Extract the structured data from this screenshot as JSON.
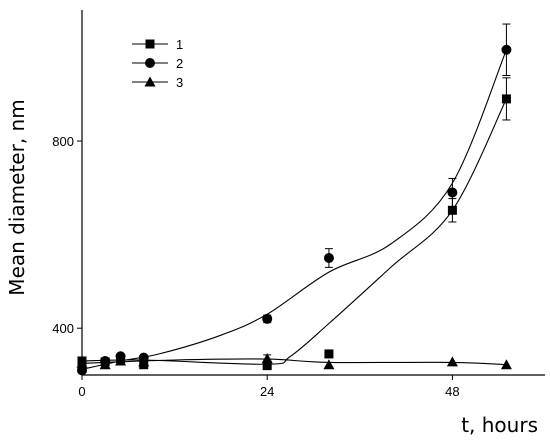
{
  "chart_data": {
    "type": "scatter",
    "xlabel": "t, hours",
    "ylabel": "Mean diameter, nm",
    "xlim": [
      0,
      60
    ],
    "ylim": [
      300,
      1080
    ],
    "x_ticks": [
      0,
      24,
      48
    ],
    "y_ticks": [
      400,
      800
    ],
    "x_tick_labels": [
      "0",
      "24",
      "48"
    ],
    "y_tick_labels": [
      "400",
      "800"
    ],
    "legend_position": "top-left",
    "series": [
      {
        "name": "1",
        "marker": "square",
        "points": [
          {
            "x": 0,
            "y": 330
          },
          {
            "x": 3,
            "y": 328
          },
          {
            "x": 5,
            "y": 335
          },
          {
            "x": 8,
            "y": 322
          },
          {
            "x": 24,
            "y": 320
          },
          {
            "x": 32,
            "y": 345
          },
          {
            "x": 48,
            "y": 652,
            "err": 25
          },
          {
            "x": 55,
            "y": 890,
            "err": 45
          }
        ],
        "curve": [
          {
            "x": 0,
            "y": 330
          },
          {
            "x": 8,
            "y": 332
          },
          {
            "x": 24,
            "y": 323
          },
          {
            "x": 27,
            "y": 340
          },
          {
            "x": 32,
            "y": 410
          },
          {
            "x": 40,
            "y": 530
          },
          {
            "x": 48,
            "y": 652
          },
          {
            "x": 55,
            "y": 890
          }
        ]
      },
      {
        "name": "2",
        "marker": "circle",
        "points": [
          {
            "x": 0,
            "y": 310
          },
          {
            "x": 3,
            "y": 330
          },
          {
            "x": 5,
            "y": 340
          },
          {
            "x": 8,
            "y": 337
          },
          {
            "x": 24,
            "y": 420,
            "err": 8
          },
          {
            "x": 32,
            "y": 550,
            "err": 20
          },
          {
            "x": 48,
            "y": 690,
            "err": 30
          },
          {
            "x": 55,
            "y": 995,
            "err": 55
          }
        ],
        "curve": [
          {
            "x": 0,
            "y": 312
          },
          {
            "x": 5,
            "y": 330
          },
          {
            "x": 10,
            "y": 345
          },
          {
            "x": 18,
            "y": 385
          },
          {
            "x": 24,
            "y": 430
          },
          {
            "x": 32,
            "y": 520
          },
          {
            "x": 40,
            "y": 580
          },
          {
            "x": 48,
            "y": 710
          },
          {
            "x": 55,
            "y": 995
          }
        ]
      },
      {
        "name": "3",
        "marker": "triangle",
        "points": [
          {
            "x": 0,
            "y": 325
          },
          {
            "x": 3,
            "y": 322
          },
          {
            "x": 5,
            "y": 330
          },
          {
            "x": 8,
            "y": 328
          },
          {
            "x": 24,
            "y": 335,
            "err": 8
          },
          {
            "x": 32,
            "y": 322
          },
          {
            "x": 48,
            "y": 328
          },
          {
            "x": 55,
            "y": 322
          }
        ],
        "curve": [
          {
            "x": 0,
            "y": 325
          },
          {
            "x": 12,
            "y": 332
          },
          {
            "x": 24,
            "y": 334
          },
          {
            "x": 32,
            "y": 327
          },
          {
            "x": 48,
            "y": 327
          },
          {
            "x": 55,
            "y": 322
          }
        ]
      }
    ]
  }
}
